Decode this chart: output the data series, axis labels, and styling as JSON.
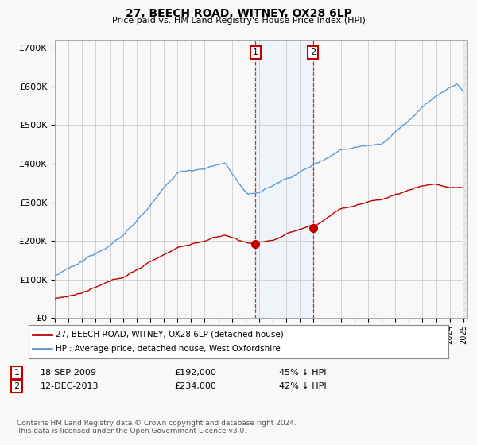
{
  "title": "27, BEECH ROAD, WITNEY, OX28 6LP",
  "subtitle": "Price paid vs. HM Land Registry's House Price Index (HPI)",
  "ylabel_ticks": [
    "£0",
    "£100K",
    "£200K",
    "£300K",
    "£400K",
    "£500K",
    "£600K",
    "£700K"
  ],
  "ytick_values": [
    0,
    100000,
    200000,
    300000,
    400000,
    500000,
    600000,
    700000
  ],
  "ylim": [
    0,
    720000
  ],
  "legend_line1": "27, BEECH ROAD, WITNEY, OX28 6LP (detached house)",
  "legend_line2": "HPI: Average price, detached house, West Oxfordshire",
  "annotation1_label": "1",
  "annotation1_date": "18-SEP-2009",
  "annotation1_price": "£192,000",
  "annotation1_pct": "45% ↓ HPI",
  "annotation2_label": "2",
  "annotation2_date": "12-DEC-2013",
  "annotation2_price": "£234,000",
  "annotation2_pct": "42% ↓ HPI",
  "footer": "Contains HM Land Registry data © Crown copyright and database right 2024.\nThis data is licensed under the Open Government Licence v3.0.",
  "hpi_color": "#5b9bd5",
  "price_color": "#c00000",
  "shaded_color": "#ddeeff",
  "background_color": "#f8f8f8",
  "grid_color": "#cccccc",
  "sale1_x": 2009.72,
  "sale1_y": 192000,
  "sale2_x": 2013.95,
  "sale2_y": 234000,
  "xmin": 1995.0,
  "xmax": 2025.3
}
